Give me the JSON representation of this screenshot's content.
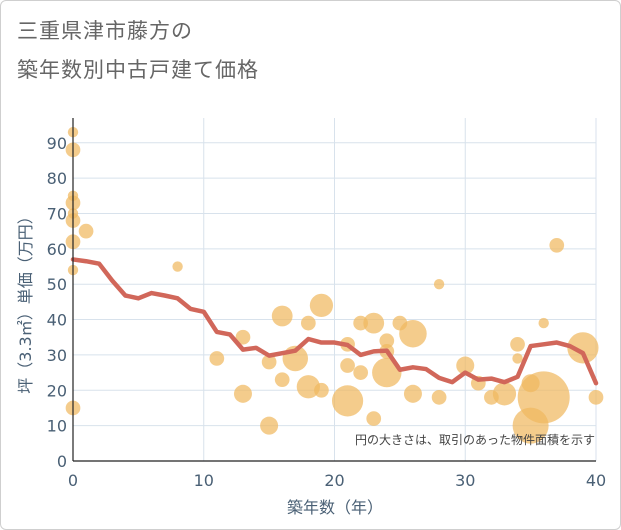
{
  "title": {
    "line1": "三重県津市藤方の",
    "line2": "築年数別中古戸建て価格"
  },
  "chart_data": {
    "type": "scatter",
    "title": "三重県津市藤方の築年数別中古戸建て価格",
    "xlabel": "築年数（年）",
    "ylabel": "坪（3.3㎡）単価（万円）",
    "xlim": [
      0,
      40
    ],
    "ylim": [
      0,
      97
    ],
    "xticks": [
      0,
      10,
      20,
      30,
      40
    ],
    "yticks": [
      0,
      10,
      20,
      30,
      40,
      50,
      60,
      70,
      80,
      90
    ],
    "grid": true,
    "annotation": "円の大きさは、取引のあった物件面積を示す",
    "colors": {
      "bubble": "#f0b860",
      "line": "#d1675a",
      "grid": "#d8e2ec",
      "axis_text": "#4a6075"
    },
    "bubbles": [
      {
        "x": 0,
        "y": 93,
        "size": 1
      },
      {
        "x": 0,
        "y": 88,
        "size": 2
      },
      {
        "x": 0,
        "y": 75,
        "size": 1
      },
      {
        "x": 0,
        "y": 73,
        "size": 2
      },
      {
        "x": 0,
        "y": 70,
        "size": 1
      },
      {
        "x": 0,
        "y": 68,
        "size": 2
      },
      {
        "x": 0,
        "y": 62,
        "size": 2
      },
      {
        "x": 0,
        "y": 54,
        "size": 1
      },
      {
        "x": 0,
        "y": 15,
        "size": 2
      },
      {
        "x": 1,
        "y": 65,
        "size": 2
      },
      {
        "x": 8,
        "y": 55,
        "size": 1
      },
      {
        "x": 11,
        "y": 29,
        "size": 2
      },
      {
        "x": 13,
        "y": 35,
        "size": 2
      },
      {
        "x": 13,
        "y": 19,
        "size": 3
      },
      {
        "x": 15,
        "y": 28,
        "size": 2
      },
      {
        "x": 15,
        "y": 10,
        "size": 3
      },
      {
        "x": 16,
        "y": 41,
        "size": 4
      },
      {
        "x": 16,
        "y": 23,
        "size": 2
      },
      {
        "x": 17,
        "y": 29,
        "size": 6
      },
      {
        "x": 18,
        "y": 39,
        "size": 2
      },
      {
        "x": 18,
        "y": 21,
        "size": 5
      },
      {
        "x": 19,
        "y": 44,
        "size": 5
      },
      {
        "x": 19,
        "y": 20,
        "size": 2
      },
      {
        "x": 21,
        "y": 33,
        "size": 2
      },
      {
        "x": 21,
        "y": 27,
        "size": 2
      },
      {
        "x": 21,
        "y": 17,
        "size": 9
      },
      {
        "x": 22,
        "y": 39,
        "size": 2
      },
      {
        "x": 22,
        "y": 25,
        "size": 2
      },
      {
        "x": 23,
        "y": 39,
        "size": 4
      },
      {
        "x": 23,
        "y": 12,
        "size": 2
      },
      {
        "x": 24,
        "y": 34,
        "size": 2
      },
      {
        "x": 24,
        "y": 31,
        "size": 2
      },
      {
        "x": 24,
        "y": 25,
        "size": 8
      },
      {
        "x": 25,
        "y": 39,
        "size": 2
      },
      {
        "x": 26,
        "y": 36,
        "size": 7
      },
      {
        "x": 26,
        "y": 19,
        "size": 3
      },
      {
        "x": 28,
        "y": 50,
        "size": 1
      },
      {
        "x": 28,
        "y": 18,
        "size": 2
      },
      {
        "x": 30,
        "y": 27,
        "size": 3
      },
      {
        "x": 31,
        "y": 22,
        "size": 2
      },
      {
        "x": 32,
        "y": 18,
        "size": 2
      },
      {
        "x": 33,
        "y": 19,
        "size": 5
      },
      {
        "x": 34,
        "y": 33,
        "size": 2
      },
      {
        "x": 34,
        "y": 29,
        "size": 1
      },
      {
        "x": 35,
        "y": 22,
        "size": 3
      },
      {
        "x": 35,
        "y": 10,
        "size": 12
      },
      {
        "x": 36,
        "y": 18,
        "size": 25
      },
      {
        "x": 36,
        "y": 39,
        "size": 1
      },
      {
        "x": 37,
        "y": 61,
        "size": 2
      },
      {
        "x": 39,
        "y": 32,
        "size": 9
      },
      {
        "x": 40,
        "y": 18,
        "size": 2
      }
    ],
    "trend_line": {
      "x": [
        0,
        1,
        2,
        3,
        4,
        5,
        6,
        7,
        8,
        9,
        10,
        11,
        12,
        13,
        14,
        15,
        16,
        17,
        18,
        19,
        20,
        21,
        22,
        23,
        24,
        25,
        26,
        27,
        28,
        29,
        30,
        31,
        32,
        33,
        34,
        35,
        36,
        37,
        38,
        39,
        40
      ],
      "y": [
        57,
        56.5,
        55.8,
        51,
        46.8,
        46,
        47.5,
        46.8,
        46,
        43,
        42.2,
        36.5,
        35.8,
        31.5,
        32,
        29.8,
        30.5,
        31.2,
        34.5,
        33.5,
        33.5,
        32.8,
        30,
        31,
        31.2,
        25.8,
        26.5,
        26,
        23.5,
        22.3,
        25,
        23,
        23.3,
        22.3,
        23.8,
        32.5,
        33,
        33.5,
        32.5,
        30.5,
        22
      ]
    }
  }
}
